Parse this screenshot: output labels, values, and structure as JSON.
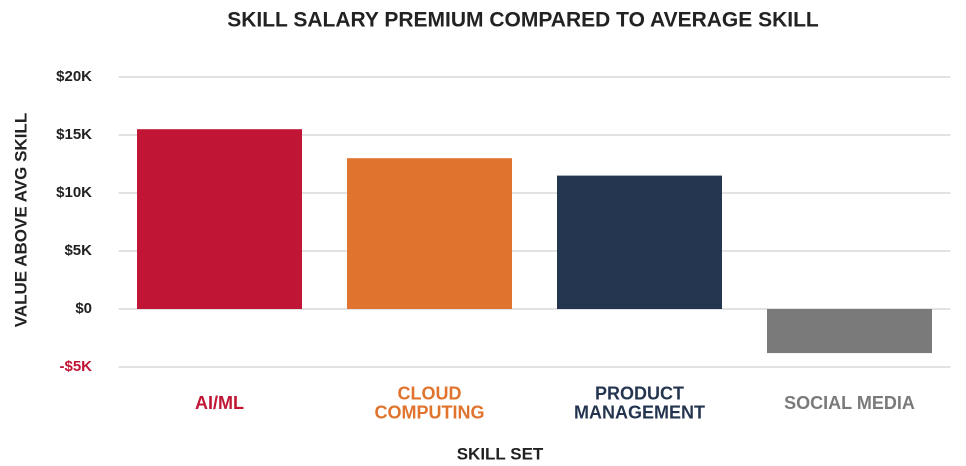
{
  "chart_data": {
    "type": "bar",
    "title": "SKILL SALARY PREMIUM COMPARED TO AVERAGE SKILL",
    "x_label": "SKILL SET",
    "y_label": "VALUE ABOVE AVG SKILL",
    "categories": [
      "AI/ML",
      "CLOUD\nCOMPUTING",
      "PRODUCT\nMANAGEMENT",
      "SOCIAL MEDIA"
    ],
    "values": [
      15500,
      13000,
      11500,
      -3800
    ],
    "colors": [
      "#c01534",
      "#e0742e",
      "#243550",
      "#7a7a7a"
    ],
    "ylim": [
      -5000,
      20000
    ],
    "yticks": [
      {
        "value": -5000,
        "label": "-$5K"
      },
      {
        "value": 0,
        "label": "$0"
      },
      {
        "value": 5000,
        "label": "$5K"
      },
      {
        "value": 10000,
        "label": "$10K"
      },
      {
        "value": 15000,
        "label": "$15K"
      },
      {
        "value": 20000,
        "label": "$20K"
      }
    ],
    "grid": true
  }
}
